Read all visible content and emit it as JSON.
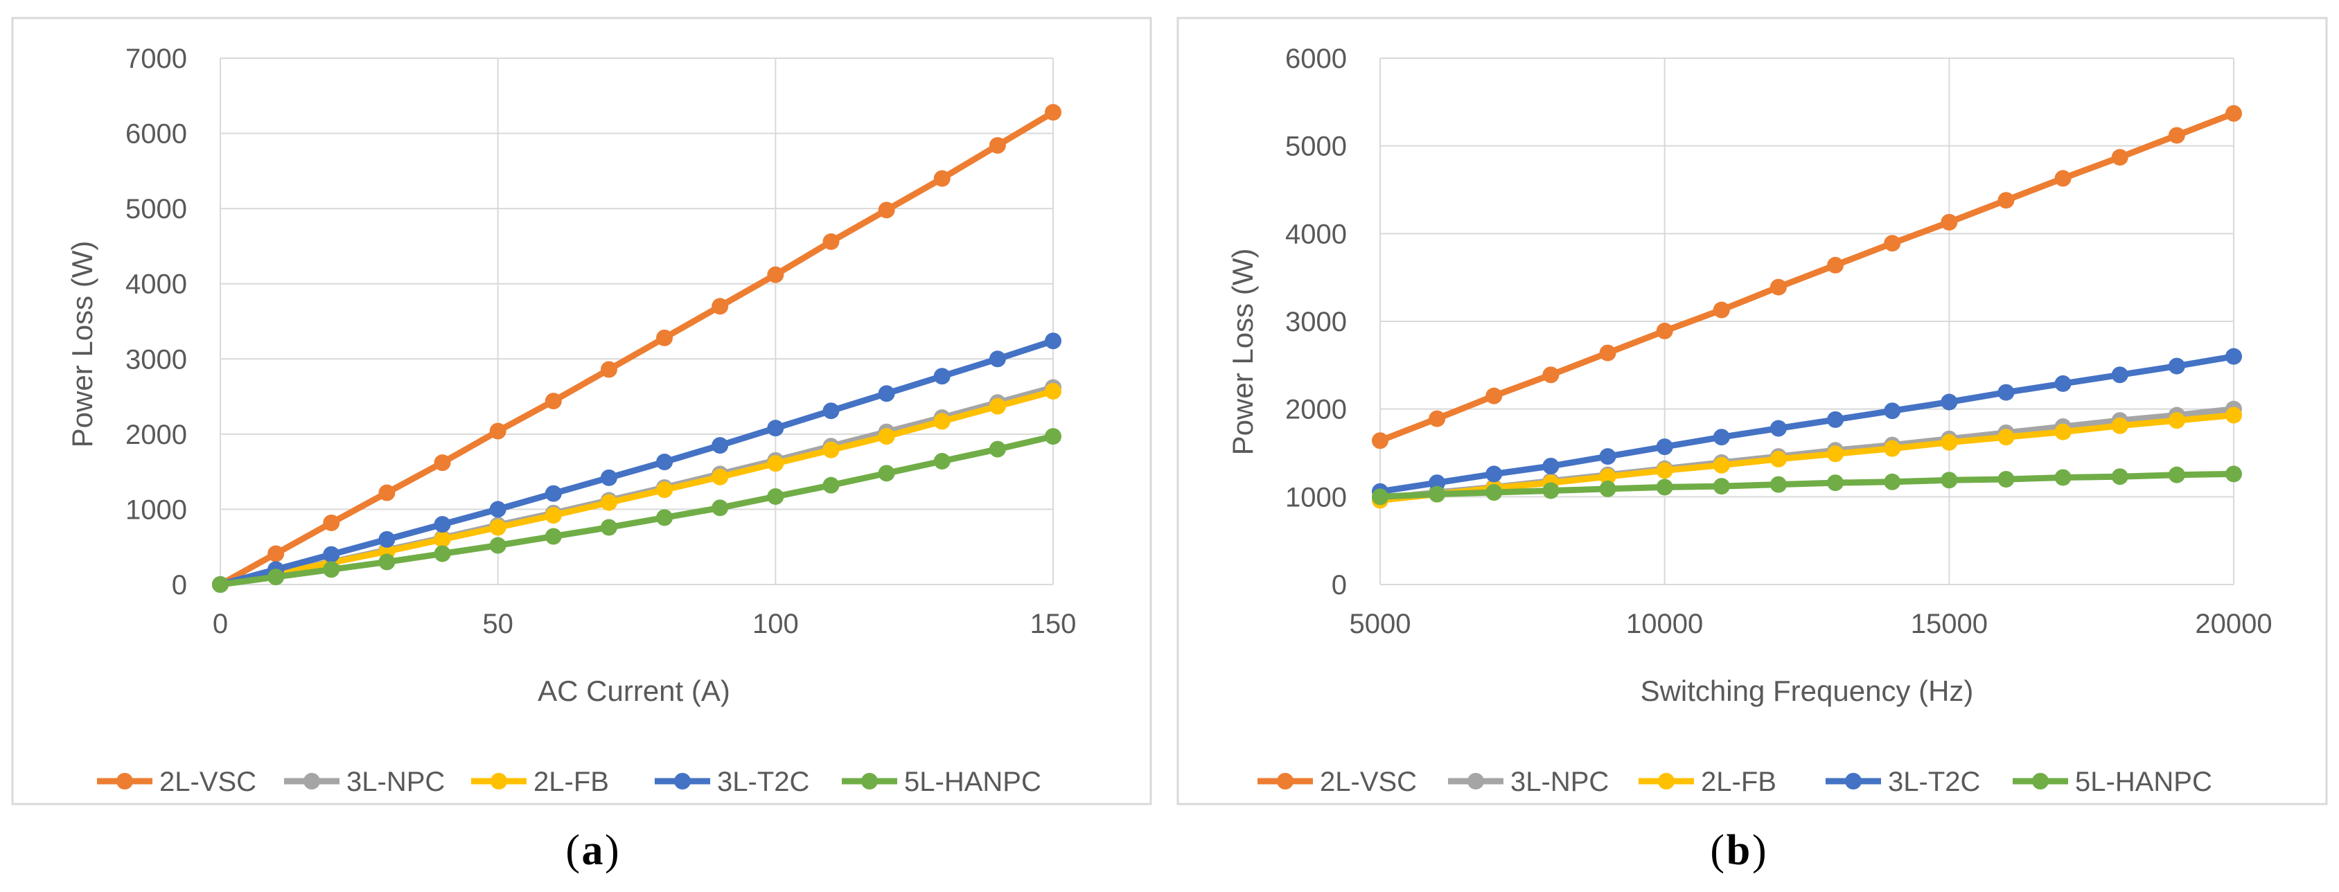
{
  "chart_data": [
    {
      "type": "line",
      "caption": "a",
      "title": "",
      "xlabel": "AC Current (A)",
      "ylabel": "Power Loss (W)",
      "xlim": [
        0,
        150
      ],
      "ylim": [
        0,
        7000
      ],
      "xticks": [
        "0",
        "50",
        "100",
        "150"
      ],
      "yticks": [
        "0",
        "1000",
        "2000",
        "3000",
        "4000",
        "5000",
        "6000",
        "7000"
      ],
      "grid": true,
      "legend_position": "bottom",
      "x": [
        0,
        10,
        20,
        30,
        40,
        50,
        60,
        70,
        80,
        90,
        100,
        110,
        120,
        130,
        140,
        150
      ],
      "series": [
        {
          "name": "2L-VSC",
          "color": "#ED7D31",
          "values": [
            0,
            410,
            820,
            1220,
            1620,
            2040,
            2440,
            2860,
            3280,
            3700,
            4120,
            4560,
            4980,
            5400,
            5840,
            6280
          ]
        },
        {
          "name": "3L-NPC",
          "color": "#A5A5A5",
          "values": [
            0,
            150,
            300,
            460,
            620,
            790,
            950,
            1120,
            1290,
            1470,
            1650,
            1840,
            2030,
            2220,
            2420,
            2620
          ]
        },
        {
          "name": "2L-FB",
          "color": "#FFC000",
          "values": [
            0,
            140,
            290,
            440,
            600,
            760,
            920,
            1090,
            1260,
            1430,
            1610,
            1790,
            1970,
            2170,
            2370,
            2570
          ]
        },
        {
          "name": "3L-T2C",
          "color": "#4472C4",
          "values": [
            0,
            200,
            400,
            600,
            800,
            1000,
            1210,
            1420,
            1630,
            1850,
            2080,
            2310,
            2540,
            2770,
            3000,
            3240
          ]
        },
        {
          "name": "5L-HANPC",
          "color": "#70AD47",
          "values": [
            0,
            100,
            200,
            300,
            410,
            520,
            640,
            760,
            890,
            1020,
            1170,
            1320,
            1480,
            1640,
            1800,
            1970
          ]
        }
      ]
    },
    {
      "type": "line",
      "caption": "b",
      "title": "",
      "xlabel": "Switching Frequency (Hz)",
      "ylabel": "Power Loss (W)",
      "xlim": [
        5000,
        20000
      ],
      "ylim": [
        0,
        6000
      ],
      "xticks": [
        "5000",
        "10000",
        "15000",
        "20000"
      ],
      "yticks": [
        "0",
        "1000",
        "2000",
        "3000",
        "4000",
        "5000",
        "6000"
      ],
      "grid": true,
      "legend_position": "bottom",
      "x": [
        5000,
        6000,
        7000,
        8000,
        9000,
        10000,
        11000,
        12000,
        13000,
        14000,
        15000,
        16000,
        17000,
        18000,
        19000,
        20000
      ],
      "series": [
        {
          "name": "2L-VSC",
          "color": "#ED7D31",
          "values": [
            1640,
            1890,
            2150,
            2390,
            2640,
            2890,
            3130,
            3390,
            3640,
            3890,
            4130,
            4380,
            4630,
            4870,
            5120,
            5370
          ]
        },
        {
          "name": "3L-NPC",
          "color": "#A5A5A5",
          "values": [
            980,
            1050,
            1110,
            1180,
            1250,
            1320,
            1390,
            1460,
            1530,
            1590,
            1660,
            1730,
            1800,
            1870,
            1930,
            2000
          ]
        },
        {
          "name": "2L-FB",
          "color": "#FFC000",
          "values": [
            960,
            1030,
            1100,
            1160,
            1230,
            1300,
            1360,
            1430,
            1490,
            1550,
            1620,
            1680,
            1740,
            1810,
            1870,
            1930
          ]
        },
        {
          "name": "3L-T2C",
          "color": "#4472C4",
          "values": [
            1060,
            1160,
            1260,
            1350,
            1460,
            1570,
            1680,
            1780,
            1880,
            1980,
            2080,
            2190,
            2290,
            2390,
            2490,
            2600
          ]
        },
        {
          "name": "5L-HANPC",
          "color": "#70AD47",
          "values": [
            1000,
            1030,
            1050,
            1070,
            1090,
            1110,
            1120,
            1140,
            1160,
            1170,
            1190,
            1200,
            1220,
            1230,
            1250,
            1260
          ]
        }
      ]
    }
  ]
}
